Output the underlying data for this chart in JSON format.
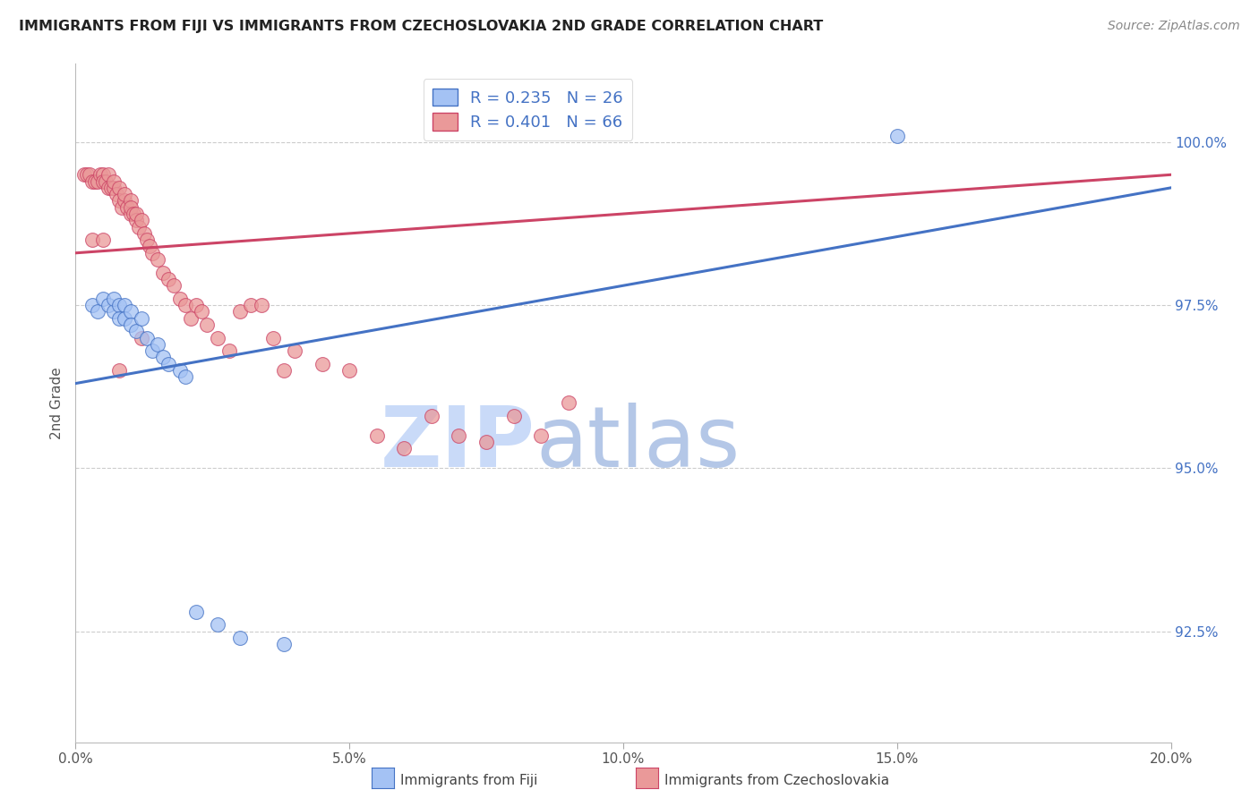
{
  "title": "IMMIGRANTS FROM FIJI VS IMMIGRANTS FROM CZECHOSLOVAKIA 2ND GRADE CORRELATION CHART",
  "source": "Source: ZipAtlas.com",
  "ylabel": "2nd Grade",
  "legend_fiji": "Immigrants from Fiji",
  "legend_czech": "Immigrants from Czechoslovakia",
  "fiji_R": 0.235,
  "fiji_N": 26,
  "czech_R": 0.401,
  "czech_N": 66,
  "x_min": 0.0,
  "x_max": 20.0,
  "y_min": 90.8,
  "y_max": 101.2,
  "yticks": [
    92.5,
    95.0,
    97.5,
    100.0
  ],
  "xticks": [
    0.0,
    5.0,
    10.0,
    15.0,
    20.0
  ],
  "color_fiji": "#a4c2f4",
  "color_czech": "#ea9999",
  "color_fiji_line": "#4472c4",
  "color_czech_line": "#cc4466",
  "color_text_blue": "#4472c4",
  "watermark_zip_color": "#c9daf8",
  "watermark_atlas_color": "#b4c7e7",
  "fiji_line_x0": 0.0,
  "fiji_line_y0": 96.3,
  "fiji_line_x1": 20.0,
  "fiji_line_y1": 99.3,
  "czech_line_x0": 0.0,
  "czech_line_y0": 98.3,
  "czech_line_x1": 20.0,
  "czech_line_y1": 99.5,
  "fiji_x": [
    0.3,
    0.4,
    0.5,
    0.6,
    0.7,
    0.7,
    0.8,
    0.8,
    0.9,
    0.9,
    1.0,
    1.0,
    1.1,
    1.2,
    1.3,
    1.4,
    1.5,
    1.6,
    1.7,
    2.2,
    2.6,
    3.0,
    3.8,
    15.0,
    1.9,
    2.0
  ],
  "fiji_y": [
    97.5,
    97.4,
    97.6,
    97.5,
    97.4,
    97.6,
    97.5,
    97.3,
    97.5,
    97.3,
    97.4,
    97.2,
    97.1,
    97.3,
    97.0,
    96.8,
    96.9,
    96.7,
    96.6,
    92.8,
    92.6,
    92.4,
    92.3,
    100.1,
    96.5,
    96.4
  ],
  "czech_x": [
    0.15,
    0.2,
    0.25,
    0.3,
    0.35,
    0.4,
    0.45,
    0.5,
    0.5,
    0.55,
    0.6,
    0.6,
    0.65,
    0.7,
    0.7,
    0.75,
    0.8,
    0.8,
    0.85,
    0.9,
    0.9,
    0.95,
    1.0,
    1.0,
    1.0,
    1.05,
    1.1,
    1.1,
    1.15,
    1.2,
    1.25,
    1.3,
    1.35,
    1.4,
    1.5,
    1.6,
    1.7,
    1.8,
    1.9,
    2.0,
    2.1,
    2.2,
    2.3,
    2.4,
    2.6,
    2.8,
    3.0,
    3.2,
    3.4,
    3.6,
    3.8,
    4.0,
    4.5,
    5.0,
    5.5,
    6.0,
    6.5,
    7.0,
    7.5,
    8.0,
    8.5,
    9.0,
    0.3,
    0.5,
    0.8,
    1.2
  ],
  "czech_y": [
    99.5,
    99.5,
    99.5,
    99.4,
    99.4,
    99.4,
    99.5,
    99.5,
    99.4,
    99.4,
    99.5,
    99.3,
    99.3,
    99.3,
    99.4,
    99.2,
    99.3,
    99.1,
    99.0,
    99.1,
    99.2,
    99.0,
    99.1,
    98.9,
    99.0,
    98.9,
    98.8,
    98.9,
    98.7,
    98.8,
    98.6,
    98.5,
    98.4,
    98.3,
    98.2,
    98.0,
    97.9,
    97.8,
    97.6,
    97.5,
    97.3,
    97.5,
    97.4,
    97.2,
    97.0,
    96.8,
    97.4,
    97.5,
    97.5,
    97.0,
    96.5,
    96.8,
    96.6,
    96.5,
    95.5,
    95.3,
    95.8,
    95.5,
    95.4,
    95.8,
    95.5,
    96.0,
    98.5,
    98.5,
    96.5,
    97.0
  ]
}
